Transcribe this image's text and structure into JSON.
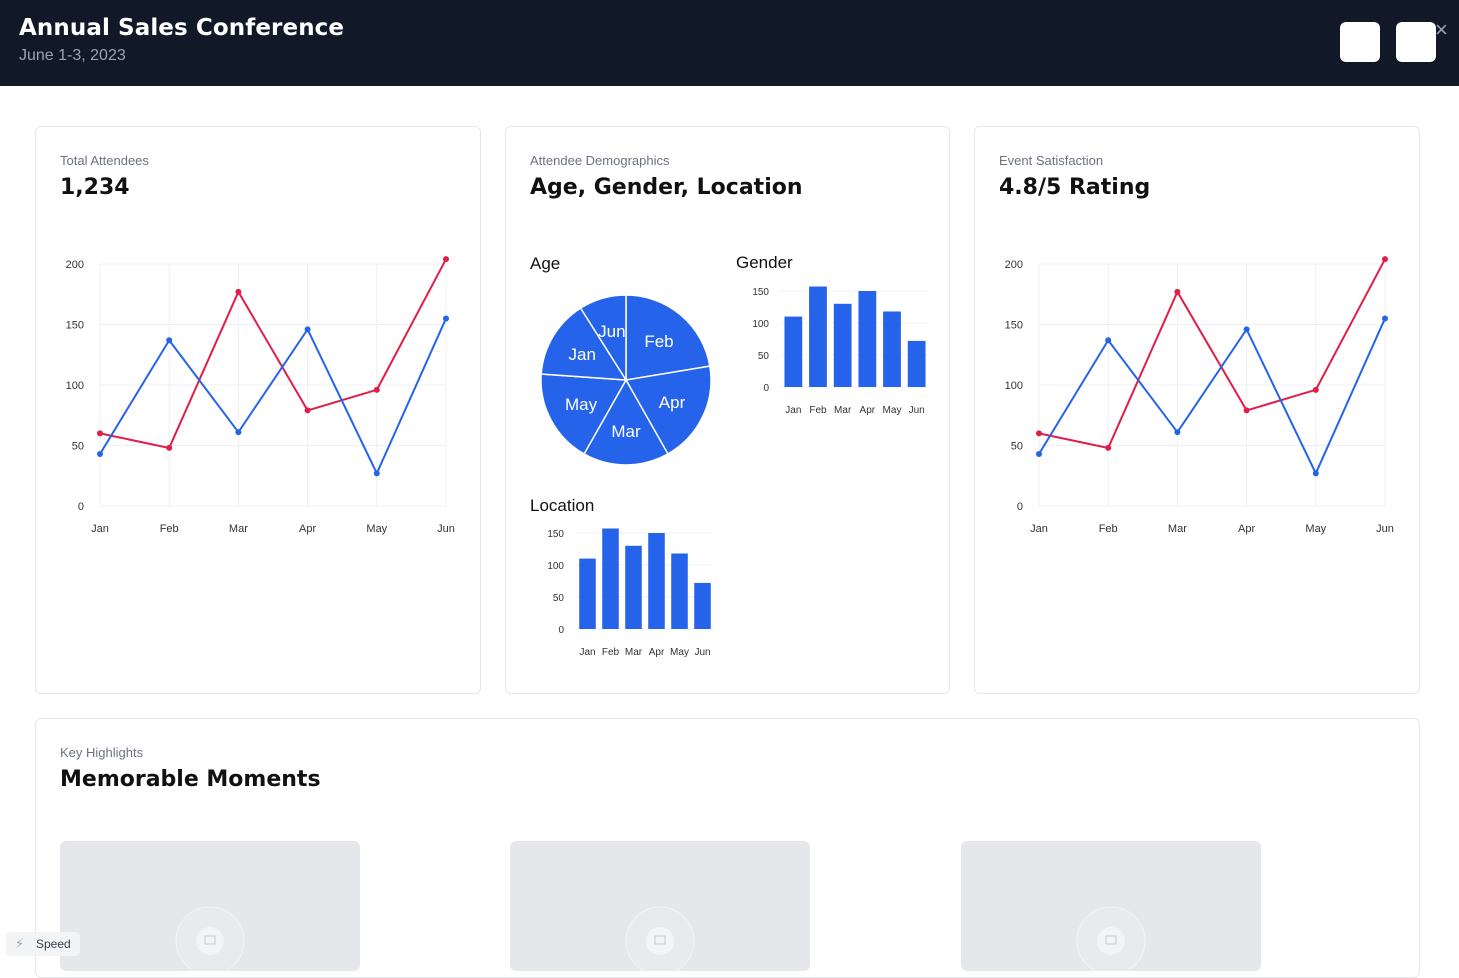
{
  "header": {
    "title": "Annual Sales Conference",
    "subtitle": "June 1-3, 2023",
    "close_glyph": "×"
  },
  "cards": {
    "attendees": {
      "label": "Total Attendees",
      "value": "1,234"
    },
    "demographics": {
      "label": "Attendee Demographics",
      "value": "Age, Gender, Location",
      "age_title": "Age",
      "gender_title": "Gender",
      "location_title": "Location"
    },
    "satisfaction": {
      "label": "Event Satisfaction",
      "value": "4.8/5 Rating"
    },
    "highlights": {
      "label": "Key Highlights",
      "value": "Memorable Moments"
    }
  },
  "speed_badge": {
    "label": "Speed",
    "icon": "bolt-icon"
  },
  "colors": {
    "red": "#e11d48",
    "blue": "#2563eb",
    "bar": "#2563eb"
  },
  "chart_data": [
    {
      "id": "attendees",
      "type": "line",
      "x": [
        "Jan",
        "Feb",
        "Mar",
        "Apr",
        "May",
        "Jun"
      ],
      "ylim": [
        0,
        200
      ],
      "yticks": [
        0,
        50,
        100,
        150,
        200
      ],
      "grid": true,
      "series": [
        {
          "color": "#e11d48",
          "values": [
            60,
            48,
            177,
            79,
            96,
            204
          ]
        },
        {
          "color": "#2563eb",
          "values": [
            43,
            137,
            61,
            146,
            27,
            155
          ]
        }
      ]
    },
    {
      "id": "age",
      "type": "pie",
      "slices": [
        {
          "label": "Feb",
          "value": 150
        },
        {
          "label": "Apr",
          "value": 130
        },
        {
          "label": "Mar",
          "value": 110
        },
        {
          "label": "May",
          "value": 120
        },
        {
          "label": "Jan",
          "value": 100
        },
        {
          "label": "Jun",
          "value": 60
        }
      ]
    },
    {
      "id": "gender",
      "type": "bar",
      "categories": [
        "Jan",
        "Feb",
        "Mar",
        "Apr",
        "May",
        "Jun"
      ],
      "values": [
        110,
        157,
        130,
        150,
        118,
        72
      ],
      "ylim": [
        0,
        150
      ],
      "yticks": [
        0,
        50,
        100,
        150
      ]
    },
    {
      "id": "location",
      "type": "bar",
      "categories": [
        "Jan",
        "Feb",
        "Mar",
        "Apr",
        "May",
        "Jun"
      ],
      "values": [
        110,
        157,
        130,
        150,
        118,
        72
      ],
      "ylim": [
        0,
        150
      ],
      "yticks": [
        0,
        50,
        100,
        150
      ]
    },
    {
      "id": "satisfaction",
      "type": "line",
      "x": [
        "Jan",
        "Feb",
        "Mar",
        "Apr",
        "May",
        "Jun"
      ],
      "ylim": [
        0,
        200
      ],
      "yticks": [
        0,
        50,
        100,
        150,
        200
      ],
      "grid": true,
      "series": [
        {
          "color": "#e11d48",
          "values": [
            60,
            48,
            177,
            79,
            96,
            204
          ]
        },
        {
          "color": "#2563eb",
          "values": [
            43,
            137,
            61,
            146,
            27,
            155
          ]
        }
      ]
    }
  ]
}
